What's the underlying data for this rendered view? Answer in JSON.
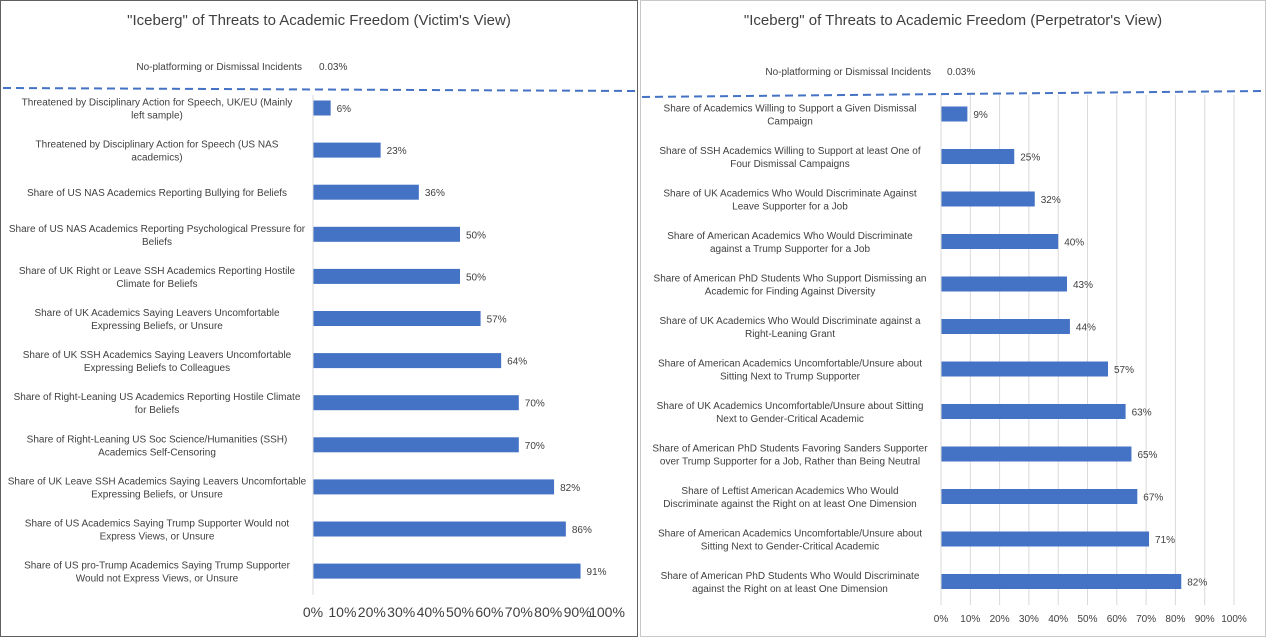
{
  "colors": {
    "bar": "#4472c4",
    "grid": "#d9d9d9",
    "dash": "#4472c4",
    "text": "#404040"
  },
  "chart_data": [
    {
      "type": "bar",
      "orientation": "horizontal",
      "title": "\"Iceberg\" of Threats to Academic Freedom (Victim's View)",
      "top_item": {
        "label": "No-platforming or Dismissal Incidents",
        "value_label": "0.03%",
        "value": 0.03
      },
      "categories": [
        "Threatened by Disciplinary Action for Speech, UK/EU (Mainly left sample)",
        "Threatened by Disciplinary Action for Speech (US NAS academics)",
        "Share of US NAS Academics Reporting Bullying for Beliefs",
        "Share of US NAS Academics Reporting Psychological Pressure for Beliefs",
        "Share of UK Right or Leave SSH Academics Reporting Hostile Climate for Beliefs",
        "Share of UK Academics Saying Leavers Uncomfortable Expressing Beliefs, or Unsure",
        "Share of UK  SSH Academics Saying Leavers Uncomfortable Expressing Beliefs to Colleagues",
        "Share of Right-Leaning US Academics Reporting Hostile Climate for Beliefs",
        "Share of Right-Leaning US Soc Science/Humanities (SSH) Academics Self-Censoring",
        "Share of UK Leave SSH Academics Saying Leavers Uncomfortable Expressing Beliefs, or Unsure",
        "Share of US Academics Saying Trump Supporter Would not Express Views, or Unsure",
        "Share of US pro-Trump Academics Saying Trump Supporter Would not Express Views, or Unsure"
      ],
      "label_lines": [
        [
          "Threatened by Disciplinary Action for Speech, UK/EU (Mainly",
          "left sample)"
        ],
        [
          "Threatened by Disciplinary Action for Speech (US NAS",
          "academics)"
        ],
        [
          "Share of US NAS Academics Reporting Bullying for Beliefs"
        ],
        [
          "Share of US NAS Academics Reporting Psychological Pressure for",
          "Beliefs"
        ],
        [
          "Share of UK Right or Leave SSH Academics Reporting Hostile",
          "Climate for Beliefs"
        ],
        [
          "Share of UK Academics Saying Leavers Uncomfortable",
          "Expressing Beliefs, or Unsure"
        ],
        [
          "Share of UK  SSH Academics Saying Leavers Uncomfortable",
          "Expressing Beliefs to Colleagues"
        ],
        [
          "Share of Right-Leaning US Academics Reporting Hostile Climate",
          "for Beliefs"
        ],
        [
          "Share of Right-Leaning US Soc Science/Humanities (SSH)",
          "Academics Self-Censoring"
        ],
        [
          "Share of UK Leave SSH Academics Saying Leavers Uncomfortable",
          "Expressing Beliefs, or Unsure"
        ],
        [
          "Share of US Academics Saying Trump Supporter Would not",
          "Express Views, or Unsure"
        ],
        [
          "Share of US pro-Trump Academics Saying Trump Supporter",
          "Would not Express Views, or Unsure"
        ]
      ],
      "values": [
        6,
        23,
        36,
        50,
        50,
        57,
        64,
        70,
        70,
        82,
        86,
        91
      ],
      "value_labels": [
        "6%",
        "23%",
        "36%",
        "50%",
        "50%",
        "57%",
        "64%",
        "70%",
        "70%",
        "82%",
        "86%",
        "91%"
      ],
      "xlim": [
        0,
        100
      ],
      "xticks": [
        "0%",
        "10%",
        "20%",
        "30%",
        "40%",
        "50%",
        "60%",
        "70%",
        "80%",
        "90%",
        "100%"
      ],
      "grid": false,
      "legend": "none"
    },
    {
      "type": "bar",
      "orientation": "horizontal",
      "title": "\"Iceberg\" of Threats to Academic Freedom (Perpetrator's View)",
      "top_item": {
        "label": "No-platforming or Dismissal Incidents",
        "value_label": "0.03%",
        "value": 0.03
      },
      "categories": [
        "Share of Academics Willing to Support a Given Dismissal Campaign",
        "Share of SSH Academics Willing to Support at least One of Four Dismissal Campaigns",
        "Share of UK Academics Who Would Discriminate Against Leave Supporter for a Job",
        "Share of American Academics Who Would Discriminate against a Trump Supporter for a Job",
        "Share of American PhD Students Who Support Dismissing an Academic for Finding Against Diversity",
        "Share of UK Academics Who Would Discriminate against a Right-Leaning Grant",
        "Share of American Academics Uncomfortable/Unsure about Sitting Next to Trump Supporter",
        "Share of UK Academics Uncomfortable/Unsure about Sitting Next to Gender-Critical Academic",
        "Share of American PhD Students Favoring Sanders Supporter over Trump Supporter for a Job, Rather than Being Neutral",
        "Share of Leftist American Academics Who Would Discriminate against the Right on at least One Dimension",
        "Share of American Academics Uncomfortable/Unsure about Sitting Next to Gender-Critical Academic",
        "Share of American PhD Students Who Would Discriminate against the Right on at least One Dimension"
      ],
      "label_lines": [
        [
          "Share of Academics Willing to Support a Given Dismissal",
          "Campaign"
        ],
        [
          "Share of SSH Academics Willing to Support at least One of",
          "Four Dismissal Campaigns"
        ],
        [
          "Share of UK Academics Who Would Discriminate Against",
          "Leave Supporter for a Job"
        ],
        [
          "Share of American Academics Who Would Discriminate",
          "against a Trump Supporter for a Job"
        ],
        [
          "Share of American PhD Students Who Support Dismissing an",
          "Academic for Finding Against Diversity"
        ],
        [
          "Share of UK Academics Who Would Discriminate against a",
          "Right-Leaning Grant"
        ],
        [
          "Share of American Academics Uncomfortable/Unsure about",
          "Sitting Next to Trump Supporter"
        ],
        [
          "Share of UK Academics Uncomfortable/Unsure about Sitting",
          "Next to Gender-Critical Academic"
        ],
        [
          "Share of American PhD Students Favoring Sanders Supporter",
          "over Trump Supporter for a Job, Rather than Being Neutral"
        ],
        [
          "Share of Leftist American Academics Who Would",
          "Discriminate against the Right on at least One Dimension"
        ],
        [
          "Share of American Academics Uncomfortable/Unsure about",
          "Sitting Next to Gender-Critical Academic"
        ],
        [
          "Share of American PhD Students Who Would Discriminate",
          "against the Right on at least One Dimension"
        ]
      ],
      "values": [
        9,
        25,
        32,
        40,
        43,
        44,
        57,
        63,
        65,
        67,
        71,
        82
      ],
      "value_labels": [
        "9%",
        "25%",
        "32%",
        "40%",
        "43%",
        "44%",
        "57%",
        "63%",
        "65%",
        "67%",
        "71%",
        "82%"
      ],
      "xlim": [
        0,
        100
      ],
      "xticks": [
        "0%",
        "10%",
        "20%",
        "30%",
        "40%",
        "50%",
        "60%",
        "70%",
        "80%",
        "90%",
        "100%"
      ],
      "grid": true,
      "legend": "none"
    }
  ]
}
